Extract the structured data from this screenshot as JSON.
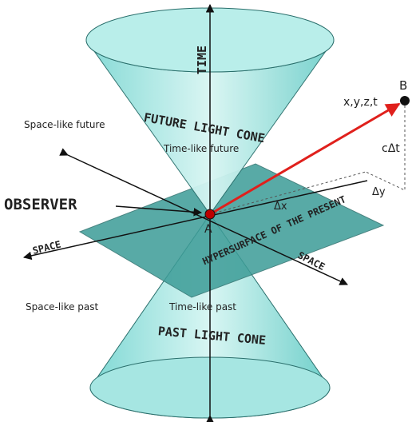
{
  "axes": {
    "time": "TIME",
    "space_left": "SPACE",
    "space_right": "SPACE"
  },
  "cones": {
    "future": "FUTURE LIGHT CONE",
    "past": "PAST LIGHT CONE"
  },
  "regions": {
    "space_like_future": "Space-like future",
    "time_like_future": "Time-like future",
    "space_like_past": "Space-like past",
    "time_like_past": "Time-like past"
  },
  "plane": "HYPERSURFACE OF THE PRESENT",
  "observer": "OBSERVER",
  "points": {
    "a": "A",
    "b": "B",
    "b_coords": "x,y,z,t"
  },
  "intervals": {
    "dt": "cΔt",
    "dx": "Δx",
    "dy": "Δy"
  }
}
